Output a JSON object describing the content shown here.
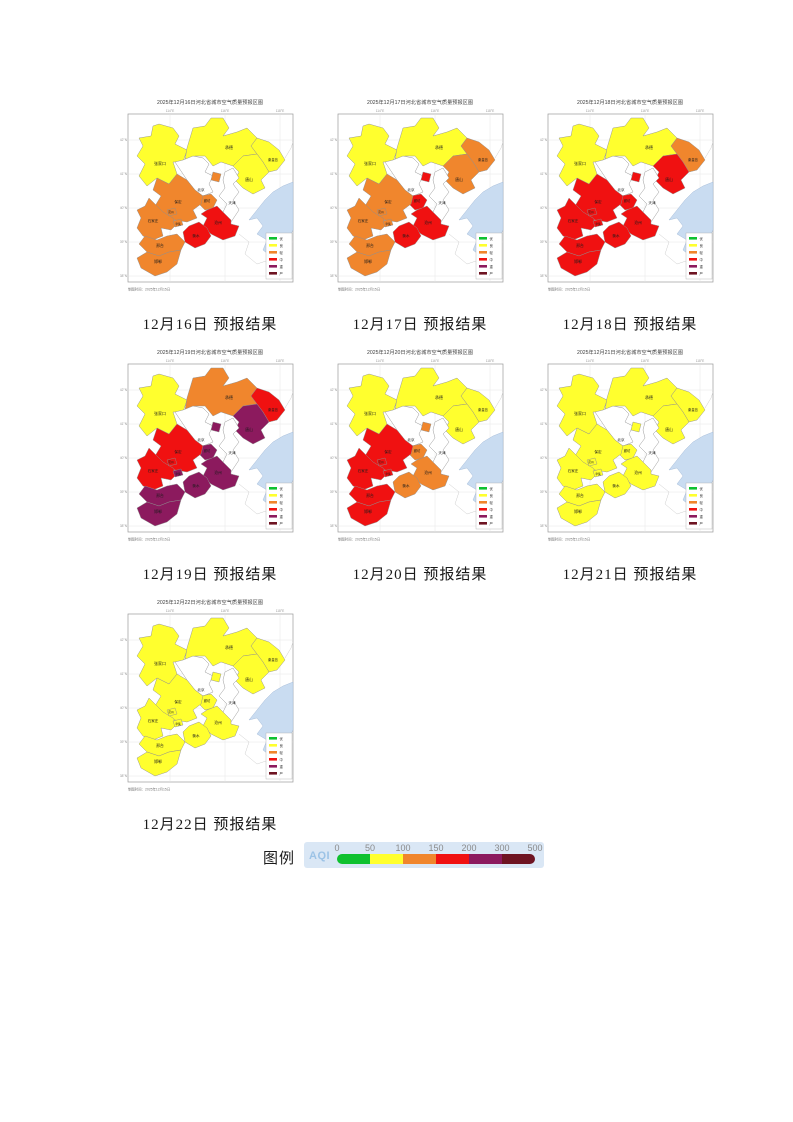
{
  "document": {
    "background": "#ffffff"
  },
  "colors": {
    "green": "#0FC12F",
    "yellow": "#FFFF2E",
    "orange": "#F0862D",
    "red": "#F01111",
    "purple": "#8C1A5E",
    "maroon": "#6E1422",
    "white": "#FFFFFF",
    "sea": "#C9DCF1",
    "aqi_text": "#9CC3E6",
    "strip_bg": "#DAE7F5"
  },
  "map_common": {
    "made_time": "制图时间：2025年12月15日",
    "x_ticks": [
      "114°E",
      "116°E",
      "118°E"
    ],
    "y_ticks": [
      "42°N",
      "41°N",
      "40°N",
      "39°N",
      "38°N"
    ],
    "city_labels": {
      "zhangjiakou": "张家口",
      "chengde": "承德",
      "beijing": "北京",
      "tianjin": "天津",
      "tangshan": "唐山",
      "qinhuangdao": "秦皇岛",
      "langfang": "廊坊",
      "baoding": "保定",
      "dingzhou": "定州",
      "xinji": "辛集",
      "shijiazhuang": "石家庄",
      "cangzhou": "沧州",
      "hengshui": "衡水",
      "xingtai": "邢台",
      "handan": "邯郸"
    },
    "mini_legend": [
      {
        "label": "优",
        "color": "green"
      },
      {
        "label": "良",
        "color": "yellow"
      },
      {
        "label": "轻",
        "color": "orange"
      },
      {
        "label": "中",
        "color": "red"
      },
      {
        "label": "重",
        "color": "purple"
      },
      {
        "label": "严",
        "color": "maroon"
      }
    ]
  },
  "figures": [
    {
      "title": "2025年12月16日河北省城市空气质量预报区图",
      "caption": "12月16日 预报结果",
      "fills": {
        "zhangjiakou": "yellow",
        "chengde": "yellow",
        "beijing": "white",
        "tianjin": "white",
        "langfang_north": "orange",
        "tangshan": "yellow",
        "qinhuangdao": "yellow",
        "langfang": "orange",
        "baoding": "orange",
        "dingzhou": "orange",
        "xinji": "orange",
        "shijiazhuang": "orange",
        "cangzhou": "red",
        "hengshui": "red",
        "xingtai": "orange",
        "handan": "orange"
      }
    },
    {
      "title": "2025年12月17日河北省城市空气质量预报区图",
      "caption": "12月17日 预报结果",
      "fills": {
        "zhangjiakou": "yellow",
        "chengde": "yellow",
        "beijing": "white",
        "tianjin": "white",
        "langfang_north": "red",
        "tangshan": "orange",
        "qinhuangdao": "orange",
        "langfang": "red",
        "baoding": "orange",
        "dingzhou": "orange",
        "xinji": "orange",
        "shijiazhuang": "orange",
        "cangzhou": "red",
        "hengshui": "red",
        "xingtai": "orange",
        "handan": "orange"
      }
    },
    {
      "title": "2025年12月18日河北省城市空气质量预报区图",
      "caption": "12月18日 预报结果",
      "fills": {
        "zhangjiakou": "yellow",
        "chengde": "yellow",
        "beijing": "white",
        "tianjin": "white",
        "langfang_north": "red",
        "tangshan": "red",
        "qinhuangdao": "orange",
        "langfang": "red",
        "baoding": "red",
        "dingzhou": "red",
        "xinji": "red",
        "shijiazhuang": "red",
        "cangzhou": "red",
        "hengshui": "red",
        "xingtai": "red",
        "handan": "red"
      }
    },
    {
      "title": "2025年12月19日河北省城市空气质量预报区图",
      "caption": "12月19日 预报结果",
      "fills": {
        "zhangjiakou": "yellow",
        "chengde": "orange",
        "beijing": "white",
        "tianjin": "white",
        "langfang_north": "purple",
        "tangshan": "purple",
        "qinhuangdao": "red",
        "langfang": "purple",
        "baoding": "red",
        "dingzhou": "red",
        "xinji": "purple",
        "shijiazhuang": "red",
        "cangzhou": "purple",
        "hengshui": "purple",
        "xingtai": "purple",
        "handan": "purple"
      }
    },
    {
      "title": "2025年12月20日河北省城市空气质量预报区图",
      "caption": "12月20日 预报结果",
      "fills": {
        "zhangjiakou": "yellow",
        "chengde": "yellow",
        "beijing": "white",
        "tianjin": "white",
        "langfang_north": "orange",
        "tangshan": "yellow",
        "qinhuangdao": "yellow",
        "langfang": "orange",
        "baoding": "red",
        "dingzhou": "red",
        "xinji": "red",
        "shijiazhuang": "red",
        "cangzhou": "orange",
        "hengshui": "orange",
        "xingtai": "red",
        "handan": "red"
      }
    },
    {
      "title": "2025年12月21日河北省城市空气质量预报区图",
      "caption": "12月21日 预报结果",
      "fills": {
        "zhangjiakou": "yellow",
        "chengde": "yellow",
        "beijing": "white",
        "tianjin": "white",
        "langfang_north": "yellow",
        "tangshan": "yellow",
        "qinhuangdao": "yellow",
        "langfang": "yellow",
        "baoding": "yellow",
        "dingzhou": "yellow",
        "xinji": "yellow",
        "shijiazhuang": "yellow",
        "cangzhou": "yellow",
        "hengshui": "yellow",
        "xingtai": "yellow",
        "handan": "yellow"
      }
    },
    {
      "title": "2025年12月22日河北省城市空气质量预报区图",
      "caption": "12月22日 预报结果",
      "fills": {
        "zhangjiakou": "yellow",
        "chengde": "yellow",
        "beijing": "white",
        "tianjin": "white",
        "langfang_north": "yellow",
        "tangshan": "yellow",
        "qinhuangdao": "yellow",
        "langfang": "yellow",
        "baoding": "yellow",
        "dingzhou": "yellow",
        "xinji": "yellow",
        "shijiazhuang": "yellow",
        "cangzhou": "yellow",
        "hengshui": "yellow",
        "xingtai": "yellow",
        "handan": "yellow"
      }
    }
  ],
  "aqi_legend": {
    "label": "图例",
    "axis_label": "AQI",
    "ticks": [
      "0",
      "50",
      "100",
      "150",
      "200",
      "300",
      "500"
    ],
    "segments": [
      "green",
      "yellow",
      "orange",
      "red",
      "purple",
      "maroon"
    ]
  }
}
